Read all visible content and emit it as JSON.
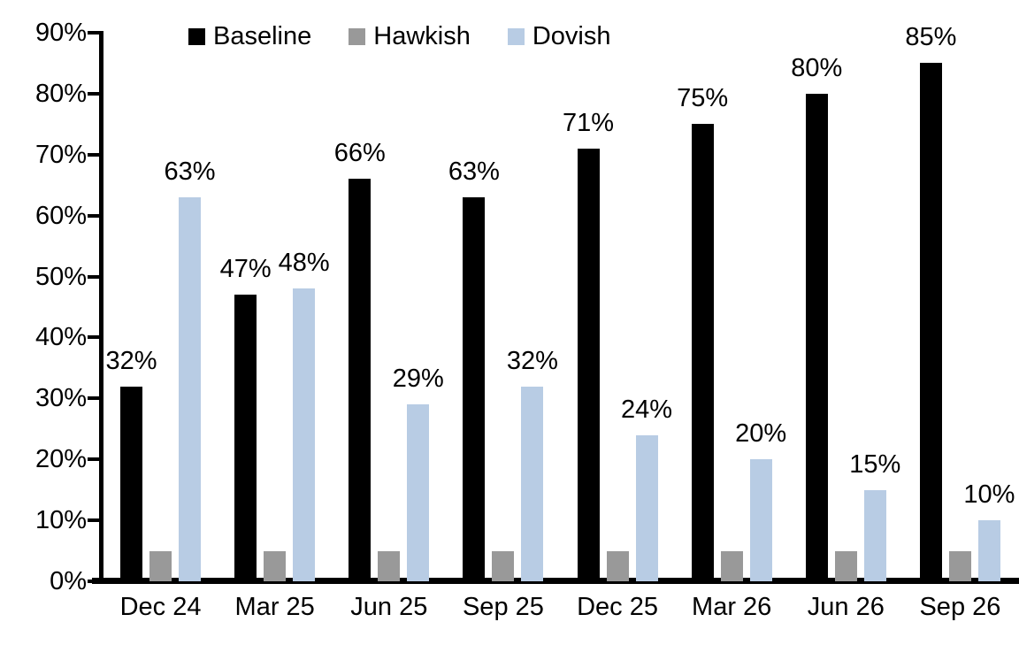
{
  "chart_data": {
    "type": "bar",
    "title": "",
    "xlabel": "",
    "ylabel": "",
    "categories": [
      "Dec 24",
      "Mar 25",
      "Jun 25",
      "Sep 25",
      "Dec 25",
      "Mar 26",
      "Jun 26",
      "Sep 26"
    ],
    "series": [
      {
        "name": "Baseline",
        "color": "#000000",
        "values": [
          32,
          47,
          66,
          63,
          71,
          75,
          80,
          85
        ],
        "show_labels": true,
        "labels": [
          "32%",
          "47%",
          "66%",
          "63%",
          "71%",
          "75%",
          "80%",
          "85%"
        ]
      },
      {
        "name": "Hawkish",
        "color": "#999999",
        "values": [
          5,
          5,
          5,
          5,
          5,
          5,
          5,
          5
        ],
        "show_labels": false,
        "labels": [
          "",
          "",
          "",
          "",
          "",
          "",
          "",
          ""
        ]
      },
      {
        "name": "Dovish",
        "color": "#B8CCE4",
        "values": [
          63,
          48,
          29,
          32,
          24,
          20,
          15,
          10
        ],
        "show_labels": true,
        "labels": [
          "63%",
          "48%",
          "29%",
          "32%",
          "24%",
          "20%",
          "15%",
          "10%"
        ]
      }
    ],
    "ylim": [
      0,
      90
    ],
    "ytick_step": 10,
    "yticks": [
      "0%",
      "10%",
      "20%",
      "30%",
      "40%",
      "50%",
      "60%",
      "70%",
      "80%",
      "90%"
    ],
    "grid": false,
    "legend_position": "top",
    "axis_color": "#000000",
    "background_color": "#FFFFFF"
  }
}
